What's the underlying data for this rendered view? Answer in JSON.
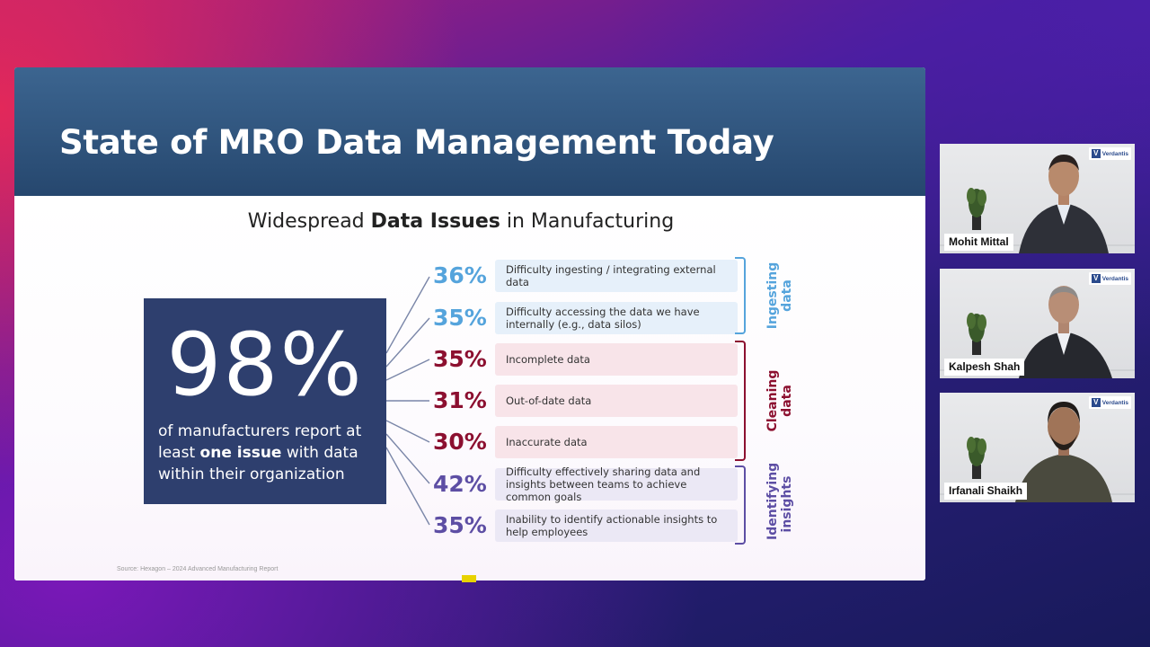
{
  "slide": {
    "title": "State of MRO Data Management Today",
    "subtitle_pre": "Widespread ",
    "subtitle_bold": "Data Issues",
    "subtitle_post": " in Manufacturing",
    "big_number": "98%",
    "big_desc_1": "of manufacturers report at least ",
    "big_desc_bold": "one issue",
    "big_desc_2": " with data within their organization",
    "source": "Source: Hexagon – 2024 Advanced Manufacturing Report",
    "rows": [
      {
        "percent": "36%",
        "text": "Difficulty ingesting / integrating external data",
        "group": "ingest"
      },
      {
        "percent": "35%",
        "text": "Difficulty accessing the data we have internally (e.g., data silos)",
        "group": "ingest"
      },
      {
        "percent": "35%",
        "text": "Incomplete data",
        "group": "clean"
      },
      {
        "percent": "31%",
        "text": "Out-of-date data",
        "group": "clean"
      },
      {
        "percent": "30%",
        "text": "Inaccurate data",
        "group": "clean"
      },
      {
        "percent": "42%",
        "text": "Difficulty effectively sharing data and insights between teams to achieve common goals",
        "group": "insight"
      },
      {
        "percent": "35%",
        "text": "Inability to identify actionable insights to help employees",
        "group": "insight"
      }
    ],
    "groups": {
      "ingest": {
        "line1": "Ingesting",
        "line2": "data",
        "color": "#55a4dc"
      },
      "clean": {
        "line1": "Cleaning",
        "line2": "data",
        "color": "#8c1030"
      },
      "insight": {
        "line1": "Identifying",
        "line2": "insights",
        "color": "#5d4ea4"
      }
    }
  },
  "participants": [
    {
      "name": "Mohit Mittal",
      "logo": "Verdantis"
    },
    {
      "name": "Kalpesh Shah",
      "logo": "Verdantis"
    },
    {
      "name": "Irfanali Shaikh",
      "logo": "Verdantis"
    }
  ],
  "colors": {
    "header": "#26476e",
    "big_box": "#2e3f6e"
  }
}
